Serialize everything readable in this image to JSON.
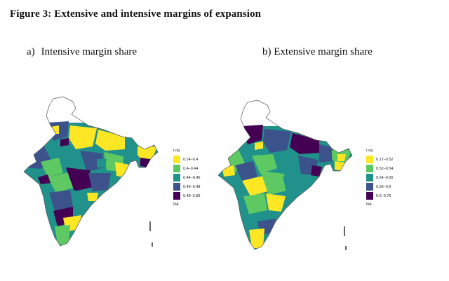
{
  "figure_title": "Figure 3: Extensive and intensive margins of expansion",
  "panels": [
    {
      "label": "a)",
      "title": "Intensive margin share",
      "legend_title": "Log",
      "legend": [
        {
          "range": "0.24–0.4",
          "color": "#fde725"
        },
        {
          "range": "0.4–0.44",
          "color": "#5ec962"
        },
        {
          "range": "0.44–0.46",
          "color": "#21918c"
        },
        {
          "range": "0.46–0.48",
          "color": "#3b528b"
        },
        {
          "range": "0.48–0.83",
          "color": "#440154"
        }
      ],
      "na_label": "NA"
    },
    {
      "label": "b)",
      "title": "Extensive margin share",
      "legend_title": "Log",
      "legend": [
        {
          "range": "0.17–0.52",
          "color": "#fde725"
        },
        {
          "range": "0.52–0.54",
          "color": "#5ec962"
        },
        {
          "range": "0.54–0.56",
          "color": "#21918c"
        },
        {
          "range": "0.56–0.6",
          "color": "#3b528b"
        },
        {
          "range": "0.6–0.76",
          "color": "#440154"
        }
      ],
      "na_label": "NA"
    }
  ]
}
